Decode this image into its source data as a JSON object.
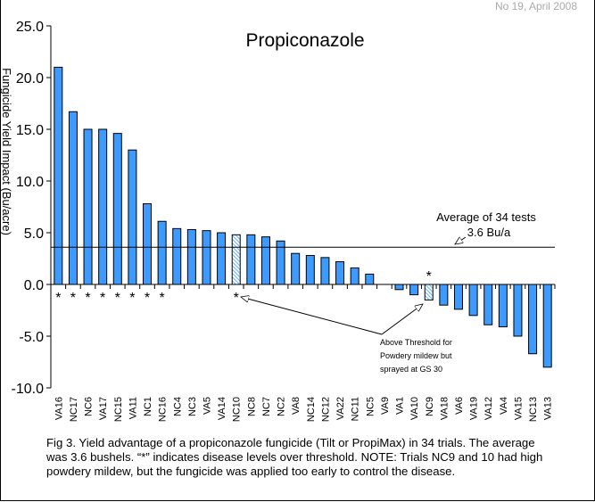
{
  "header": "No 19, April 2008",
  "caption": "Fig 3. Yield advantage of a propiconazole fungicide (Tilt or PropiMax) in 34 trials. The average was 3.6 bushels. “*” indicates disease levels over threshold. NOTE: Trials NC9 and 10 had high powdery mildew, but the fungicide was applied too early to control the disease.",
  "chart_data": {
    "type": "bar",
    "title": "Propiconazole",
    "ylabel": "Fungicide Yield Impact (Bu/acre)",
    "xlabel": "",
    "ylim": [
      -10,
      25
    ],
    "yticks": [
      "25.0",
      "20.0",
      "15.0",
      "10.0",
      "5.0",
      "0.0",
      "-5.0",
      "-10.0"
    ],
    "grid": false,
    "bar_color": "#3d9bff",
    "categories": [
      "VA16",
      "NC17",
      "NC6",
      "VA17",
      "NC15",
      "VA11",
      "NC1",
      "NC16",
      "NC4",
      "NC3",
      "VA5",
      "VA14",
      "NC10",
      "NC8",
      "NC7",
      "NC2",
      "VA8",
      "NC14",
      "NC12",
      "VA22",
      "NC11",
      "NC5",
      "VA9",
      "VA1",
      "VA10",
      "NC9",
      "VA18",
      "VA6",
      "VA19",
      "VA12",
      "VA4",
      "VA15",
      "NC13",
      "VA13"
    ],
    "values": [
      21.0,
      16.7,
      15.0,
      15.0,
      14.6,
      13.0,
      7.8,
      6.1,
      5.4,
      5.3,
      5.2,
      5.0,
      4.8,
      4.8,
      4.6,
      4.2,
      3.0,
      2.8,
      2.6,
      2.2,
      1.6,
      1.0,
      0.0,
      -0.5,
      -1.0,
      -1.5,
      -2.0,
      -2.4,
      -3.0,
      -3.9,
      -4.1,
      -5.0,
      -6.7,
      -8.0
    ],
    "over_threshold": [
      "VA16",
      "NC17",
      "NC6",
      "VA17",
      "NC15",
      "VA11",
      "NC1",
      "NC16",
      "NC10",
      "NC9"
    ],
    "hatched": [
      "NC10",
      "NC9"
    ],
    "star_symbol": "*",
    "average": {
      "value": 3.6,
      "label_line1": "Average of 34 tests",
      "label_line2": "3.6 Bu/a"
    },
    "annotation": {
      "lines": [
        "Above Threshold for",
        "Powdery mildew but",
        "sprayed at GS 30"
      ]
    }
  }
}
